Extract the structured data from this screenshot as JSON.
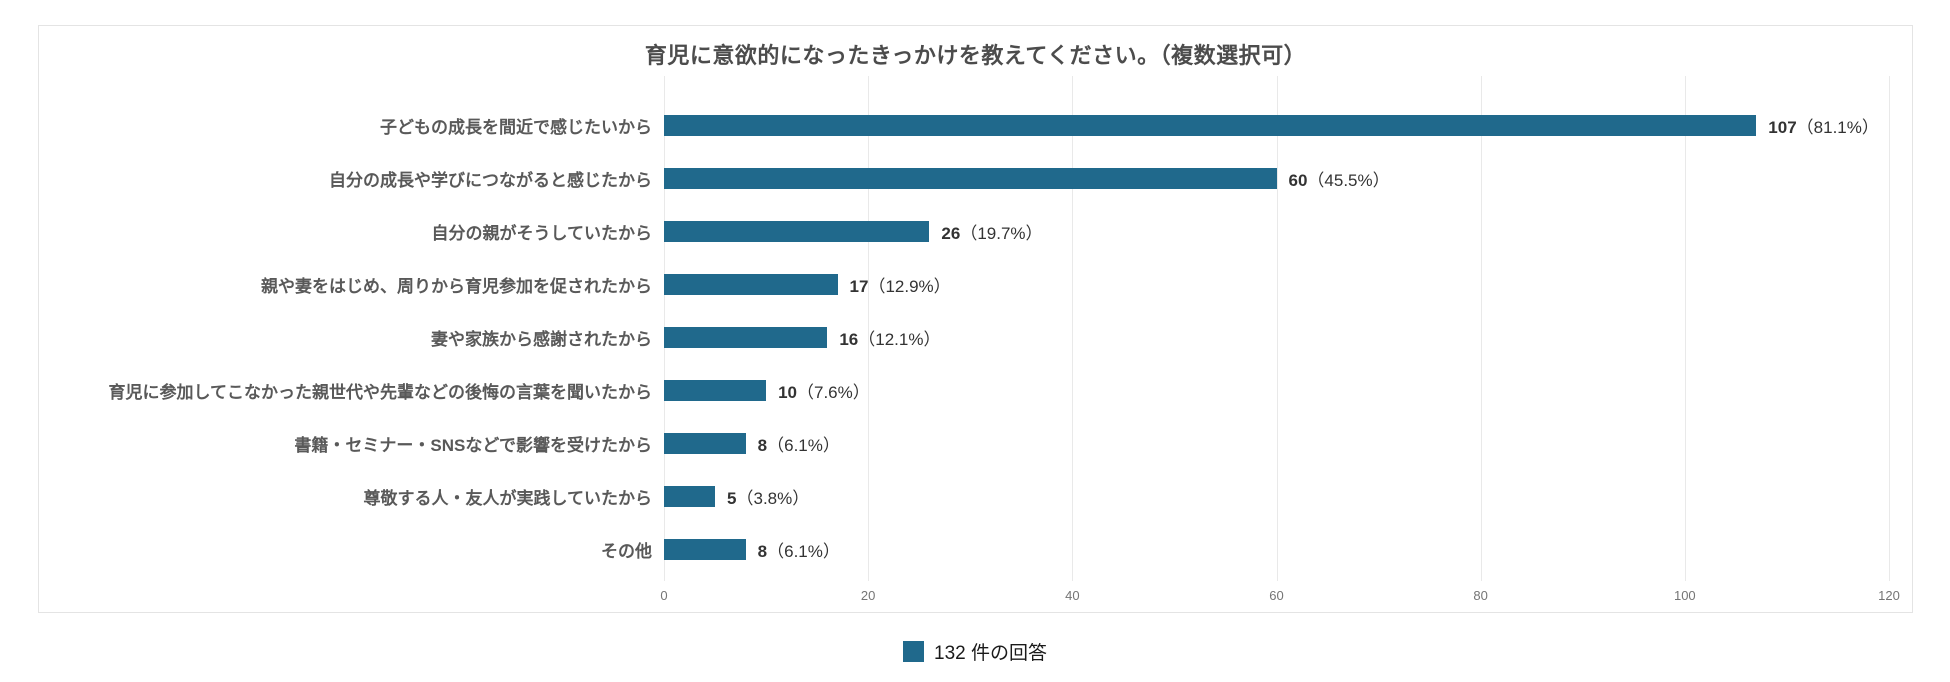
{
  "chart": {
    "title": "育児に意欲的になったきっかけを教えてください。（複数選択可）",
    "legend_label": "132 件の回答",
    "bar_color": "#20698C"
  },
  "chart_data": {
    "type": "bar",
    "orientation": "horizontal",
    "title": "育児に意欲的になったきっかけを教えてください。（複数選択可）",
    "categories": [
      "子どもの成長を間近で感じたいから",
      "自分の成長や学びにつながると感じたから",
      "自分の親がそうしていたから",
      "親や妻をはじめ、周りから育児参加を促されたから",
      "妻や家族から感謝されたから",
      "育児に参加してこなかった親世代や先輩などの後悔の言葉を聞いたから",
      "書籍・セミナー・SNSなどで影響を受けたから",
      "尊敬する人・友人が実践していたから",
      "その他"
    ],
    "values": [
      107,
      60,
      26,
      17,
      16,
      10,
      8,
      5,
      8
    ],
    "percent_labels": [
      "81.1%",
      "45.5%",
      "19.7%",
      "12.9%",
      "12.1%",
      "7.6%",
      "6.1%",
      "3.8%",
      "6.1%"
    ],
    "xlim": [
      0,
      120
    ],
    "x_ticks": [
      0,
      20,
      40,
      60,
      80,
      100,
      120
    ],
    "grid": true,
    "legend": [
      "132 件の回答"
    ],
    "legend_position": "bottom",
    "bar_color": "#20698C"
  }
}
